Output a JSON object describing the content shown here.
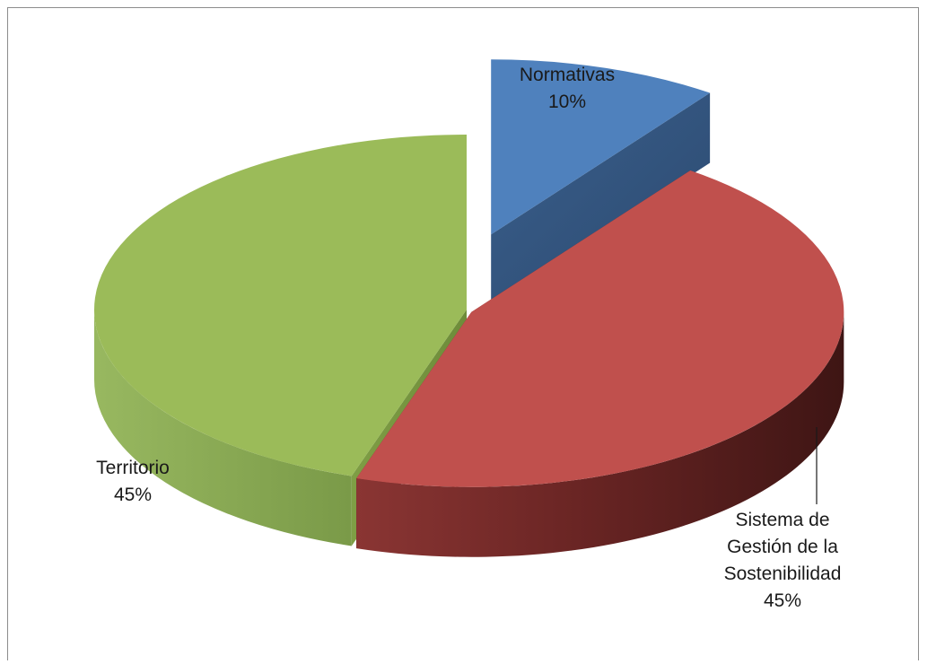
{
  "chart_data": {
    "type": "pie",
    "style": "3d-exploded",
    "slices": [
      {
        "label": "Normativas",
        "value": 10,
        "value_label": "10%",
        "color": "#4F81BD"
      },
      {
        "label": "Sistema de Gestión de la Sostenibilidad",
        "label_lines": [
          "Sistema de",
          "Gestión de la",
          "Sostenibilidad"
        ],
        "value": 45,
        "value_label": "45%",
        "color": "#C0504D"
      },
      {
        "label": "Territorio",
        "value": 45,
        "value_label": "45%",
        "color": "#9BBB59"
      }
    ],
    "legend": "none",
    "title": ""
  }
}
